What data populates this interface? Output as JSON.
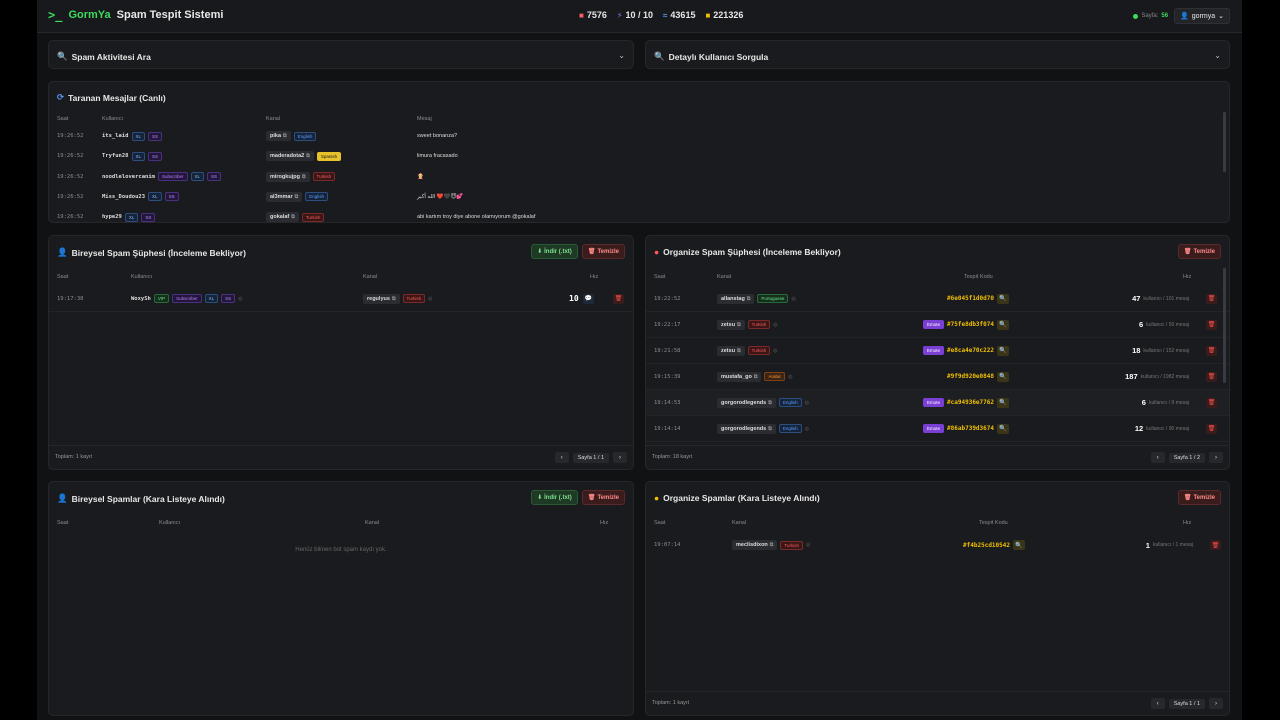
{
  "header": {
    "brand": "GormYa",
    "title": "Spam Tespit Sistemi",
    "stats": [
      {
        "icon": "camera-icon",
        "value": "7576"
      },
      {
        "icon": "bolt-icon",
        "value": "10 / 10"
      },
      {
        "icon": "chat-icon",
        "value": "43615"
      },
      {
        "icon": "db-icon",
        "value": "221326"
      }
    ],
    "online_label": "Sayfa:",
    "online_count": "56",
    "user": "gormya"
  },
  "search_panels": {
    "left": "Spam Aktivitesi Ara",
    "right": "Detaylı Kullanıcı Sorgula"
  },
  "live": {
    "title": "Taranan Mesajlar (Canlı)",
    "headers": [
      "Saat",
      "Kullanıcı",
      "Kanal",
      "Mesaj"
    ],
    "rows": [
      {
        "time": "19:26:52",
        "user": "its_laid",
        "tags": [
          "XL",
          "SS"
        ],
        "channel": "pika",
        "lang": "English",
        "lang_class": "eng",
        "msg": "sweet bonanza?"
      },
      {
        "time": "19:26:52",
        "user": "Tryfun28",
        "tags": [
          "XL",
          "SS"
        ],
        "channel": "maderadota2",
        "lang": "Spanish",
        "lang_class": "spa",
        "msg": "limura fracasado"
      },
      {
        "time": "19:26:52",
        "user": "noodlelovercаnim",
        "tags": [
          "Subscriber",
          "XL",
          "SS"
        ],
        "channel": "mirogkujpg",
        "lang": "Turkish",
        "lang_class": "tur",
        "msg": "🤶"
      },
      {
        "time": "19:26:52",
        "user": "Miss_Doudou23",
        "tags": [
          "XL",
          "SS"
        ],
        "channel": "al3mmar",
        "lang": "English",
        "lang_class": "eng",
        "msg": "الله أكبر ❤️🖤😈💕"
      },
      {
        "time": "19:26:52",
        "user": "hype29",
        "tags": [
          "XL",
          "SS"
        ],
        "channel": "gokalaf",
        "lang": "Turkish",
        "lang_class": "tur",
        "msg": "abi kartım troy diye abone olamıyorum @gokalaf"
      }
    ]
  },
  "indiv_pending": {
    "title": "Bireysel Spam Şüphesi (İnceleme Bekliyor)",
    "download": "İndir (.txt)",
    "clear": "Temizle",
    "headers": [
      "Saat",
      "Kullanıcı",
      "Kanal",
      "Hız"
    ],
    "rows": [
      {
        "time": "19:17:38",
        "user": "WoxySh",
        "tags": [
          "VIP",
          "Subscriber",
          "XL",
          "SS"
        ],
        "channel": "regulyus",
        "lang": "Turkish",
        "speed": "10"
      }
    ],
    "footer": "Toplam: 1 kayıt",
    "page": "Sayfa 1 / 1"
  },
  "org_pending": {
    "title": "Organize Spam Şüphesi (İnceleme Bekliyor)",
    "clear": "Temizle",
    "headers": [
      "Saat",
      "Kanal",
      "Tespit Kodu",
      "Hız"
    ],
    "rows": [
      {
        "time": "19:22:52",
        "channel": "allanstag",
        "lang": "Portuguese",
        "lang_class": "por",
        "emote": "",
        "code": "#6e045f1d0d70",
        "count": "47",
        "sub": "kullanıcı / 101 mesaj"
      },
      {
        "time": "19:22:17",
        "channel": "zetsu",
        "lang": "Turkish",
        "lang_class": "tur",
        "emote": "Emote",
        "code": "#75fe8db3f074",
        "count": "6",
        "sub": "kullanıcı / 50 mesaj"
      },
      {
        "time": "19:21:58",
        "channel": "zetsu",
        "lang": "Turkish",
        "lang_class": "tur",
        "emote": "Emote",
        "code": "#e8ca4e70c222",
        "count": "18",
        "sub": "kullanıcı / 152 mesaj"
      },
      {
        "time": "19:15:39",
        "channel": "mustafa_go",
        "lang": "Arabic",
        "lang_class": "ara",
        "emote": "",
        "code": "#9f9d920e0848",
        "count": "187",
        "sub": "kullanıcı / 1982 mesaj"
      },
      {
        "time": "19:14:53",
        "channel": "gorgorodlegends",
        "lang": "English",
        "lang_class": "eng",
        "emote": "Emote",
        "code": "#ca94936e7762",
        "count": "6",
        "sub": "kullanıcı / 9 mesaj"
      },
      {
        "time": "19:14:14",
        "channel": "gorgorodlegends",
        "lang": "English",
        "lang_class": "eng",
        "emote": "Emote",
        "code": "#86ab739d3674",
        "count": "12",
        "sub": "kullanıcı / 90 mesaj"
      }
    ],
    "footer": "Toplam: 18 kayıt",
    "page": "Sayfa 1 / 2"
  },
  "indiv_black": {
    "title": "Bireysel Spamlar (Kara Listeye Alındı)",
    "download": "İndir (.txt)",
    "clear": "Temizle",
    "headers": [
      "Saat",
      "Kullanıcı",
      "Kanal",
      "Hız"
    ],
    "empty": "Henüz bilinen bot spam kaydı yok."
  },
  "org_black": {
    "title": "Organize Spamlar (Kara Listeye Alındı)",
    "clear": "Temizle",
    "headers": [
      "Saat",
      "Kanal",
      "Tespit Kodu",
      "Hız"
    ],
    "rows": [
      {
        "time": "19:07:14",
        "channel": "meclisdixon",
        "lang": "Turkish",
        "code": "#f4b25cd10542",
        "count": "1",
        "sub": "kullanıcı / 1 mesaj"
      }
    ],
    "footer": "Toplam: 1 kayıt",
    "page": "Sayfa 1 / 1"
  }
}
